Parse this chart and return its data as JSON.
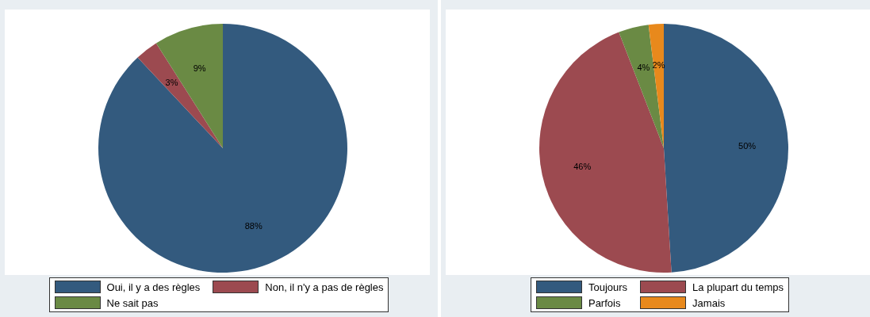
{
  "chart_data": [
    {
      "type": "pie",
      "categories": [
        "Oui, il y a des règles",
        "Non, il n'y a pas de règles",
        "Ne sait pas"
      ],
      "values": [
        88,
        3,
        9
      ],
      "colors": [
        "#335a7e",
        "#9c4a50",
        "#6a8a44"
      ],
      "value_labels": [
        "88%",
        "3%",
        "9%"
      ],
      "legend": "bottom"
    },
    {
      "type": "pie",
      "categories": [
        "Toujours",
        "La plupart du temps",
        "Parfois",
        "Jamais"
      ],
      "values": [
        50,
        46,
        4,
        2
      ],
      "colors": [
        "#335a7e",
        "#9c4a50",
        "#6a8a44",
        "#e8891c"
      ],
      "value_labels": [
        "50%",
        "46%",
        "4%",
        "2%"
      ],
      "legend": "bottom"
    }
  ]
}
